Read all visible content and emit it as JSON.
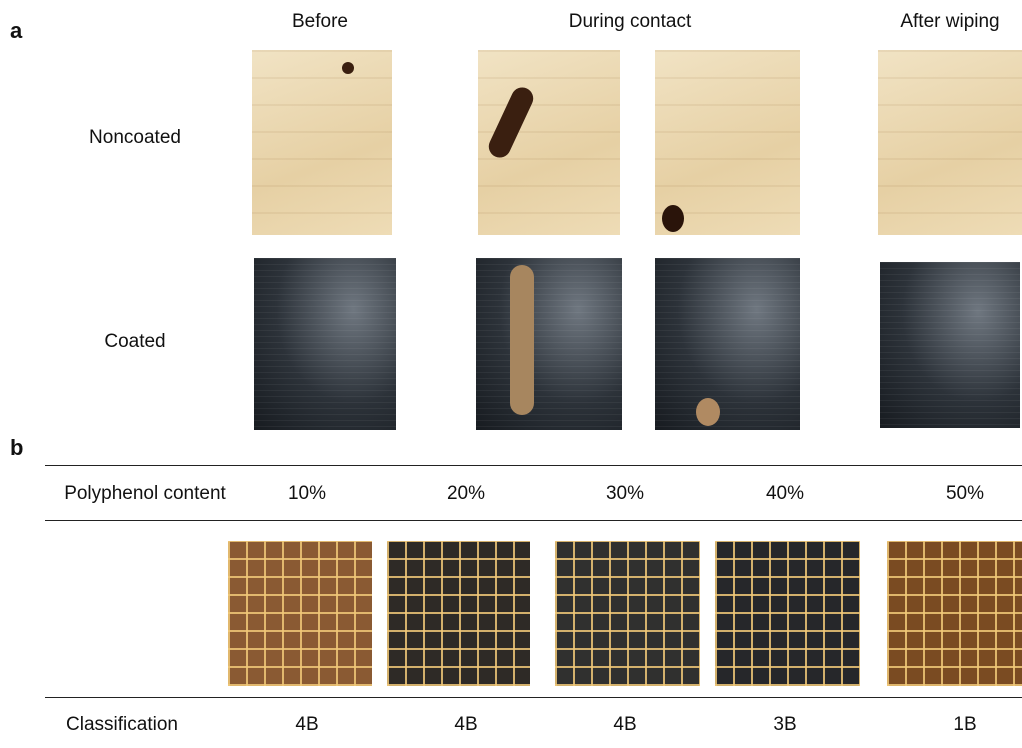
{
  "panel_a": {
    "label": "a",
    "columns": [
      "Before",
      "During contact",
      "After wiping"
    ],
    "rows": [
      "Noncoated",
      "Coated"
    ]
  },
  "panel_b": {
    "label": "b",
    "header": "Polyphenol content",
    "contents": [
      "10%",
      "20%",
      "30%",
      "40%",
      "50%"
    ],
    "row_label": "Classification",
    "classifications": [
      "4B",
      "4B",
      "4B",
      "3B",
      "1B"
    ]
  }
}
